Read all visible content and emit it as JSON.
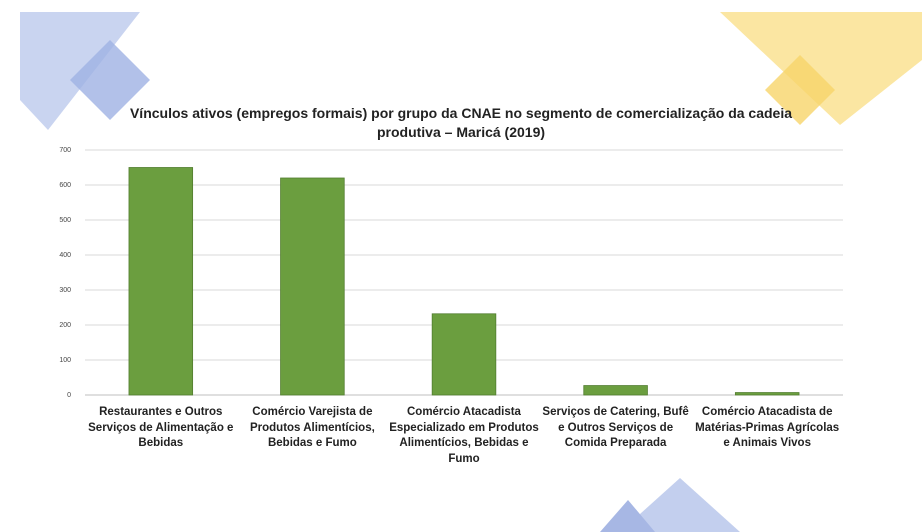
{
  "chart_data": {
    "type": "bar",
    "title": "Vínculos ativos (empregos formais) por grupo da CNAE no segmento de comercialização da cadeia produtiva – Maricá (2019)",
    "categories": [
      "Restaurantes e Outros Serviços de Alimentação e Bebidas",
      "Comércio Varejista de Produtos Alimentícios, Bebidas e Fumo",
      "Comércio Atacadista Especializado em Produtos Alimentícios, Bebidas e Fumo",
      "Serviços de Catering, Bufê e Outros Serviços de Comida Preparada",
      "Comércio Atacadista de Matérias-Primas Agrícolas e Animais Vivos"
    ],
    "values": [
      650,
      620,
      232,
      27,
      7
    ],
    "color": "#6b9e3f",
    "ylim": [
      0,
      700
    ],
    "yticks": [
      0,
      100,
      200,
      300,
      400,
      500,
      600,
      700
    ],
    "grid": true
  }
}
